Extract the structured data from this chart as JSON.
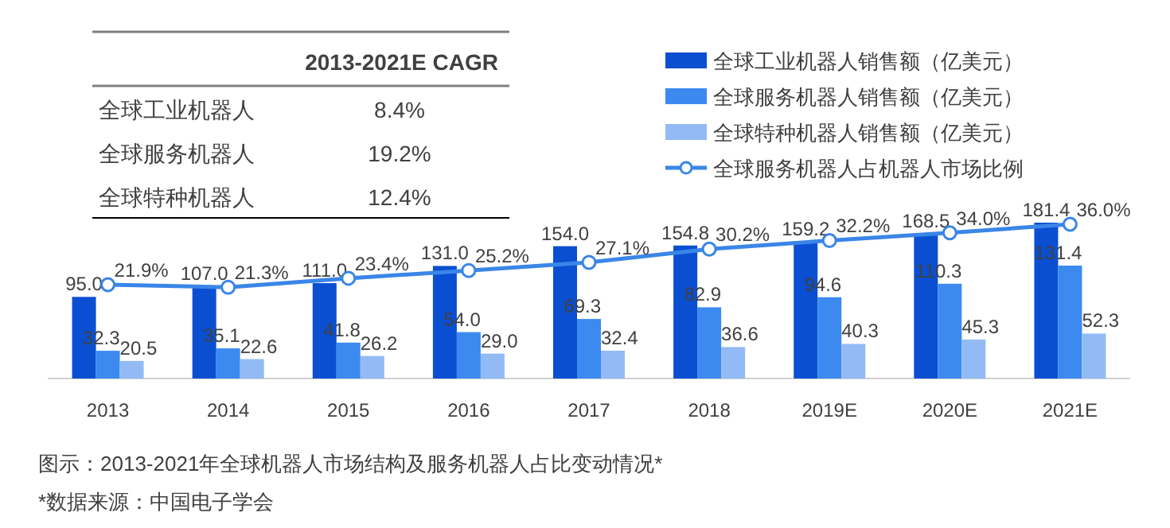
{
  "chart_data": {
    "type": "bar",
    "categories": [
      "2013",
      "2014",
      "2015",
      "2016",
      "2017",
      "2018",
      "2019E",
      "2020E",
      "2021E"
    ],
    "series": [
      {
        "name": "全球工业机器人销售额（亿美元）",
        "color": "#0a4fd1",
        "values": [
          95.0,
          107.0,
          111.0,
          131.0,
          154.0,
          154.8,
          159.2,
          168.5,
          181.4
        ],
        "value_labels": [
          "95.0",
          "107.0",
          "111.0",
          "131.0",
          "154.0",
          "154.8",
          "159.2",
          "168.5",
          "181.4"
        ]
      },
      {
        "name": "全球服务机器人销售额（亿美元）",
        "color": "#3c8af0",
        "values": [
          32.3,
          35.1,
          41.8,
          54.0,
          69.3,
          82.9,
          94.6,
          110.3,
          131.4
        ],
        "value_labels": [
          "32.3",
          "35.1",
          "41.8",
          "54.0",
          "69.3",
          "82.9",
          "94.6",
          "110.3",
          "131.4"
        ]
      },
      {
        "name": "全球特种机器人销售额（亿美元）",
        "color": "#92bbf5",
        "values": [
          20.5,
          22.6,
          26.2,
          29.0,
          32.4,
          36.6,
          40.3,
          45.3,
          52.3
        ],
        "value_labels": [
          "20.5",
          "22.6",
          "26.2",
          "29.0",
          "32.4",
          "36.6",
          "40.3",
          "45.3",
          "52.3"
        ]
      },
      {
        "name": "全球服务机器人占机器人市场比例",
        "color": "#3a86e8",
        "type": "line",
        "axis": "y2",
        "marker": "circle",
        "value_labels": [
          "21.9%",
          "21.3%",
          "23.4%",
          "25.2%",
          "27.1%",
          "30.2%",
          "32.2%",
          "34.0%",
          "36.0%"
        ],
        "values": [
          21.9,
          21.3,
          23.4,
          25.2,
          27.1,
          30.2,
          32.2,
          34.0,
          36.0
        ]
      }
    ],
    "data_labels": true,
    "legend": "top right",
    "annotations": [
      "2013-2021E CAGR",
      "全球工业机器人",
      "8.4%",
      "全球服务机器人",
      "19.2%",
      "全球特种机器人",
      "12.4%",
      "图示：2013-2021年全球机器人市场结构及服务机器人占比变动情况*",
      "*数据来源：中国电子学会"
    ]
  }
}
